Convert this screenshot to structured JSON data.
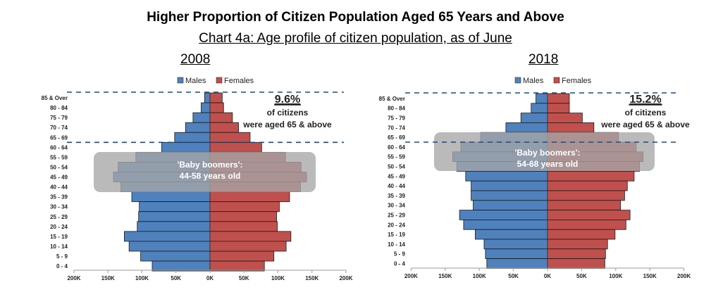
{
  "header": {
    "title": "Higher Proportion of Citizen Population Aged 65 Years and Above",
    "subtitle": "Chart 4a: Age profile of citizen population, as of June"
  },
  "colors": {
    "males": "#4F81BD",
    "females": "#C0504D",
    "highlight": "#A6A6A6",
    "dashed_line": "#1F497D"
  },
  "chart_data": [
    {
      "type": "bar",
      "orientation": "horizontal-pyramid",
      "title": "2008",
      "categories": [
        "85 & Over",
        "80 - 84",
        "75 - 79",
        "70 - 74",
        "65 - 69",
        "60 - 64",
        "55 - 59",
        "50 - 54",
        "45 - 49",
        "40 - 44",
        "35 - 39",
        "30 - 34",
        "25 - 29",
        "20 - 24",
        "15 - 19",
        "10 - 14",
        "5 - 9",
        "0 - 4"
      ],
      "series": [
        {
          "name": "Males",
          "values": [
            8,
            13,
            25,
            36,
            52,
            71,
            109,
            135,
            142,
            131,
            115,
            104,
            105,
            107,
            126,
            119,
            102,
            85
          ]
        },
        {
          "name": "Females",
          "values": [
            18,
            20,
            33,
            42,
            59,
            76,
            111,
            134,
            142,
            133,
            117,
            102,
            98,
            99,
            119,
            112,
            94,
            80
          ]
        }
      ],
      "units": "thousands",
      "xlim": [
        -200,
        200
      ],
      "x_ticks": [
        "200K",
        "150K",
        "100K",
        "50K",
        "0K",
        "50K",
        "100K",
        "150K",
        "200K"
      ],
      "legend": {
        "position": "top",
        "entries": [
          "Males",
          "Females"
        ]
      },
      "annotation": {
        "percent": "9.6%",
        "line1": "of citizens",
        "line2": "were aged 65 & above"
      },
      "highlight": {
        "label_line1": "'Baby boomers':",
        "label_line2": "44-58 years old",
        "from_category": "55 - 59",
        "to_category": "40 - 44"
      },
      "dashed_lines_above": [
        "85 & Over",
        "60 - 64"
      ]
    },
    {
      "type": "bar",
      "orientation": "horizontal-pyramid",
      "title": "2018",
      "categories": [
        "85 & Over",
        "80 - 84",
        "75 - 79",
        "70 - 74",
        "65 - 69",
        "60 - 64",
        "55 - 59",
        "50 - 54",
        "45 - 49",
        "40 - 44",
        "35 - 39",
        "30 - 34",
        "25 - 29",
        "20 - 24",
        "15 - 19",
        "10 - 14",
        "5 - 9",
        "0 - 4"
      ],
      "series": [
        {
          "name": "Males",
          "values": [
            17,
            24,
            39,
            61,
            98,
            127,
            139,
            133,
            120,
            112,
            112,
            109,
            129,
            123,
            106,
            93,
            91,
            89
          ]
        },
        {
          "name": "Females",
          "values": [
            32,
            32,
            51,
            68,
            104,
            130,
            140,
            135,
            127,
            117,
            113,
            107,
            121,
            115,
            99,
            88,
            85,
            84
          ]
        }
      ],
      "units": "thousands",
      "xlim": [
        -200,
        200
      ],
      "x_ticks": [
        "200K",
        "150K",
        "100K",
        "50K",
        "0K",
        "50K",
        "100K",
        "150K",
        "200K"
      ],
      "legend": {
        "position": "top",
        "entries": [
          "Males",
          "Females"
        ]
      },
      "annotation": {
        "percent": "15.2%",
        "line1": "of citizens",
        "line2": "were aged 65 & above"
      },
      "highlight": {
        "label_line1": "'Baby boomers':",
        "label_line2": "54-68 years old",
        "from_category": "65 - 69",
        "to_category": "50 - 54"
      },
      "dashed_lines_above": [
        "85 & Over",
        "60 - 64"
      ]
    }
  ]
}
